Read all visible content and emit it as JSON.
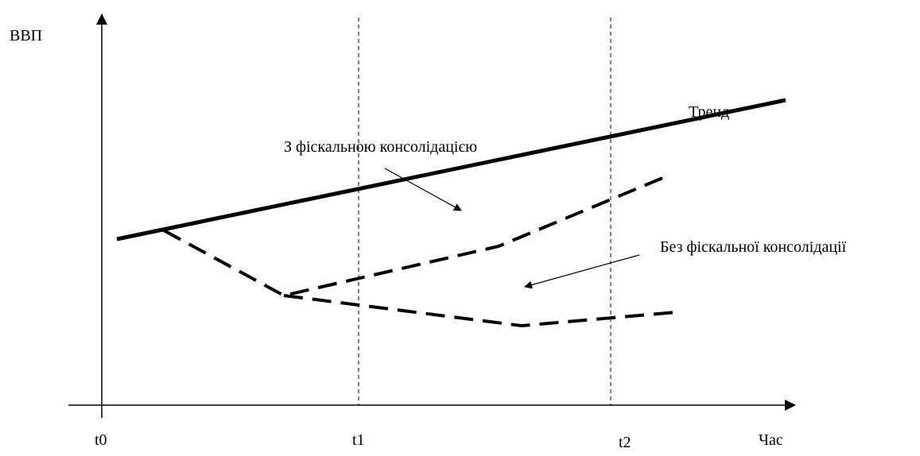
{
  "diagram": {
    "y_axis_label": "ВВП",
    "x_axis_label": "Час",
    "time_marks": [
      "t0",
      "t1",
      "t2"
    ],
    "trend_label": "Тренд",
    "with_consolidation_label": "З фіскальною консолідацією",
    "without_consolidation_label": "Без фіскальної консолідації",
    "line_color": "#000000",
    "trend_style": "solid-thick",
    "scenario_style": "dashed-thick",
    "marker_style": "dashed-thin-vertical"
  }
}
